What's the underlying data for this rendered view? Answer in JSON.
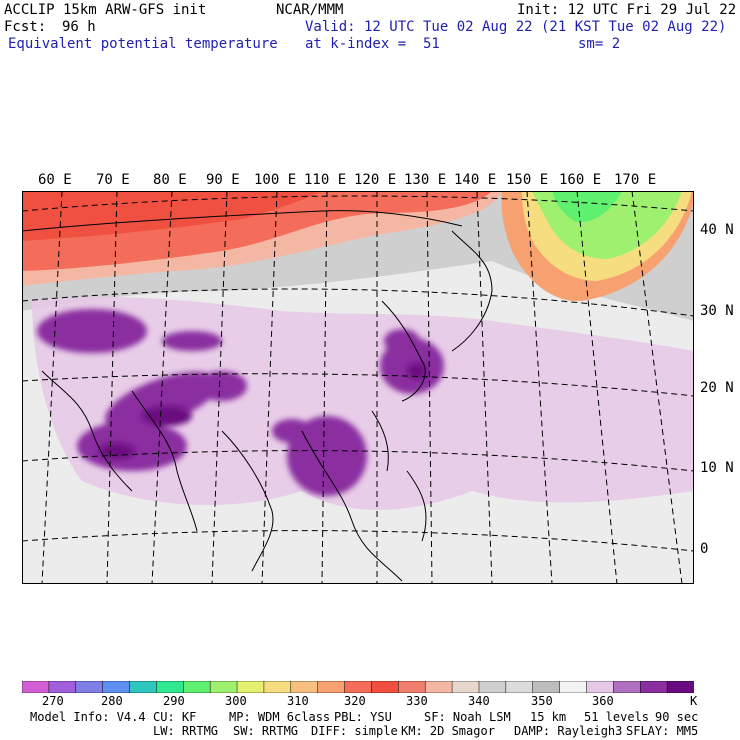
{
  "header": {
    "model": "ACCLIP 15km ARW-GFS init",
    "org": "NCAR/MMM",
    "init": "Init: 12 UTC Fri 29 Jul 22",
    "fcst_label": "Fcst:",
    "fcst_value": "96 h",
    "valid": "Valid: 12 UTC Tue 02 Aug 22 (21 KST Tue 02 Aug 22)",
    "field": "Equivalent potential temperature",
    "level": "at k-index =  51",
    "smoothing": "sm= 2"
  },
  "map": {
    "lon_labels": [
      "60 E",
      "70 E",
      "80 E",
      "90 E",
      "100 E",
      "110 E",
      "120 E",
      "130 E",
      "140 E",
      "150 E",
      "160 E",
      "170 E"
    ],
    "lat_labels": [
      "40 N",
      "30 N",
      "20 N",
      "10 N",
      "0"
    ]
  },
  "colorbar": {
    "colors": [
      "#d35fd6",
      "#a25fdc",
      "#7f7fe6",
      "#5f8ff0",
      "#2fc6c0",
      "#30e890",
      "#5ff070",
      "#a0f070",
      "#e6f070",
      "#f5dd80",
      "#f7c080",
      "#f7a070",
      "#f46d5a",
      "#f05040",
      "#f07e6e",
      "#f3b7a4",
      "#e6d6cc",
      "#cfcfcf",
      "#dcdcdc",
      "#bdbdbd",
      "#f2f2f2",
      "#e8c8e8",
      "#b070c0",
      "#8a2ea0",
      "#6a0a80"
    ],
    "labels": [
      "270",
      "280",
      "290",
      "300",
      "310",
      "320",
      "330",
      "340",
      "350",
      "360"
    ],
    "unit": "K"
  },
  "footer": {
    "line1": [
      "Model Info: V4.4",
      "CU: KF",
      "MP: WDM 6class",
      "PBL: YSU",
      "SF: Noah LSM",
      "15 km",
      "51 levels",
      "90 sec"
    ],
    "line2": [
      "LW: RRTMG",
      "SW: RRTMG",
      "DIFF: simple",
      "KM: 2D Smagor",
      "DAMP: Rayleigh3",
      "SFLAY: MM5"
    ]
  }
}
